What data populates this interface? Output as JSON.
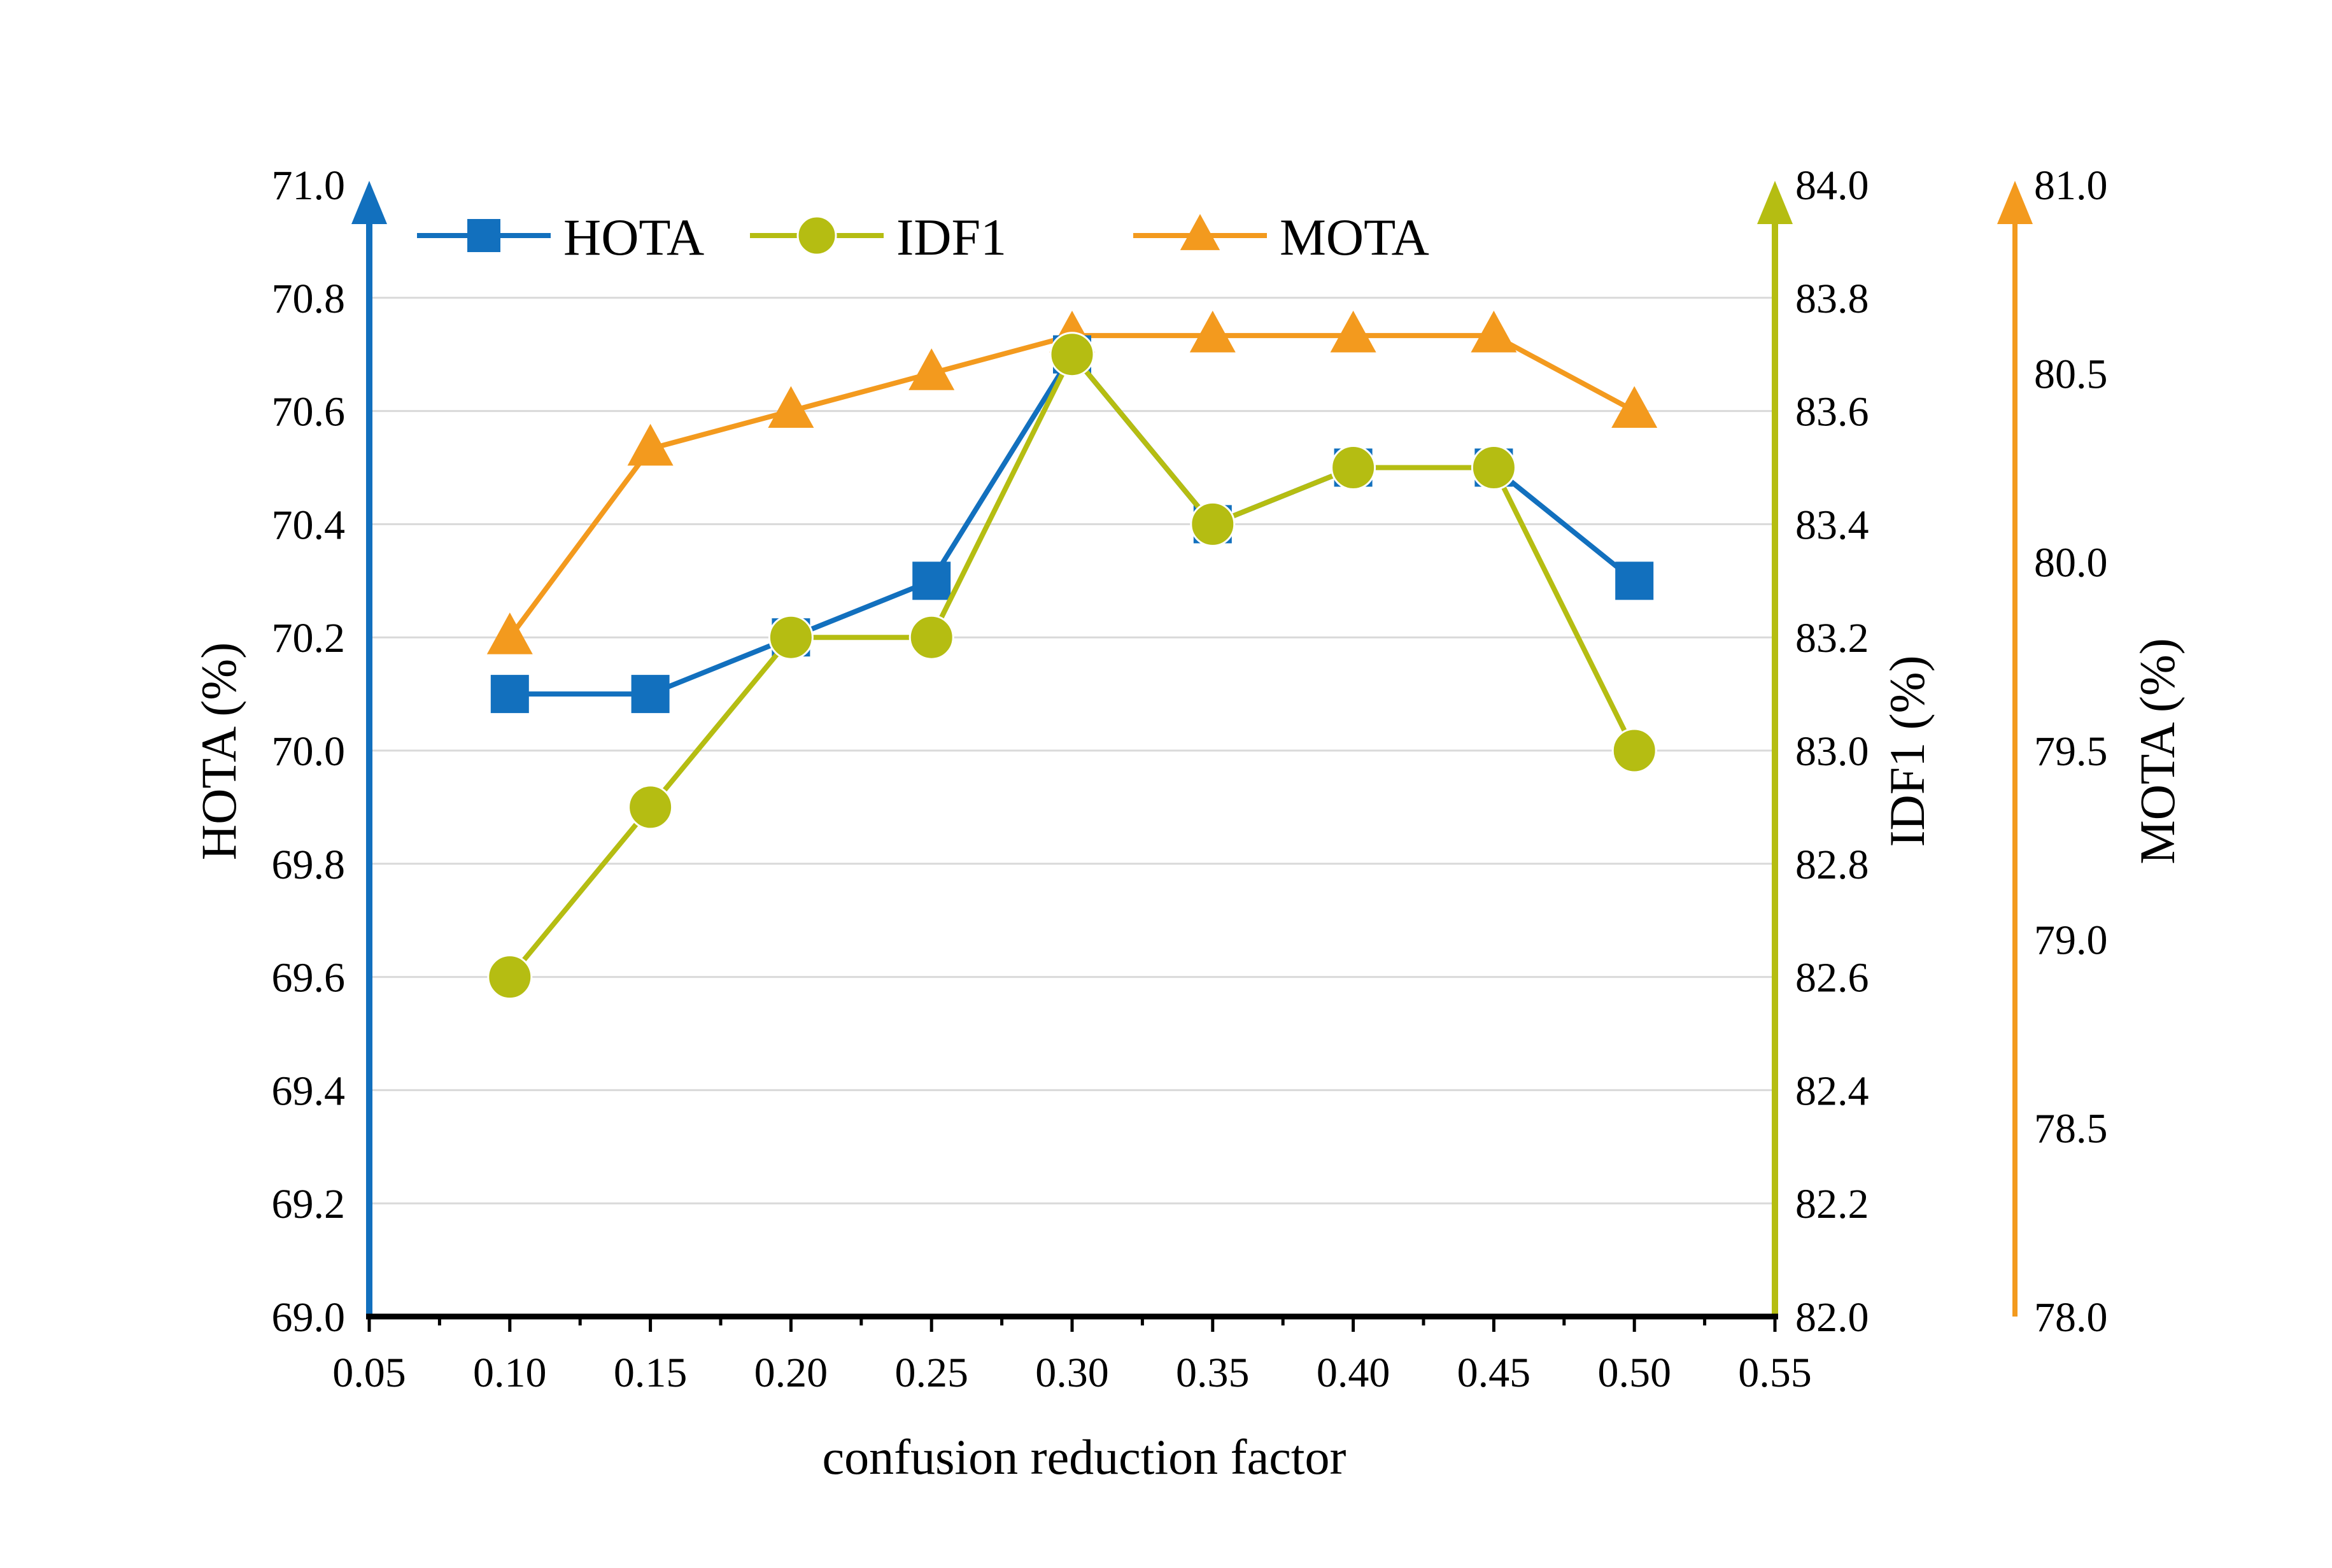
{
  "chart_data": {
    "type": "line",
    "title": "",
    "x": [
      0.1,
      0.15,
      0.2,
      0.25,
      0.3,
      0.35,
      0.4,
      0.45,
      0.5
    ],
    "x_ticks": [
      "0.05",
      "0.10",
      "0.15",
      "0.20",
      "0.25",
      "0.30",
      "0.35",
      "0.40",
      "0.45",
      "0.50",
      "0.55"
    ],
    "xlim": [
      0.05,
      0.55
    ],
    "xlabel": "confusion reduction factor",
    "axes": {
      "left": {
        "label": "HOTA (%)",
        "ylim": [
          69.0,
          71.0
        ],
        "ticks": [
          "69.0",
          "69.2",
          "69.4",
          "69.6",
          "69.8",
          "70.0",
          "70.2",
          "70.4",
          "70.6",
          "70.8",
          "71.0"
        ],
        "color": "#1270BE"
      },
      "right1": {
        "label": "IDF1 (%)",
        "ylim": [
          82.0,
          84.0
        ],
        "ticks": [
          "82.0",
          "82.2",
          "82.4",
          "82.6",
          "82.8",
          "83.0",
          "83.2",
          "83.4",
          "83.6",
          "83.8",
          "84.0"
        ],
        "color": "#B5BD12"
      },
      "right2": {
        "label": "MOTA (%)",
        "ylim": [
          78.0,
          81.0
        ],
        "ticks": [
          "78.0",
          "78.5",
          "79.0",
          "79.5",
          "80.0",
          "80.5",
          "81.0"
        ],
        "color": "#F39A1E"
      }
    },
    "series": [
      {
        "name": "HOTA",
        "axis": "left",
        "marker": "square",
        "color": "#1270BE",
        "values": [
          70.1,
          70.1,
          70.2,
          70.3,
          70.7,
          70.4,
          70.5,
          70.5,
          70.3
        ]
      },
      {
        "name": "IDF1",
        "axis": "right1",
        "marker": "circle",
        "color": "#B5BD12",
        "values": [
          82.6,
          82.9,
          83.2,
          83.2,
          83.7,
          83.4,
          83.5,
          83.5,
          83.0
        ]
      },
      {
        "name": "MOTA",
        "axis": "right2",
        "marker": "triangle",
        "color": "#F39A1E",
        "values": [
          79.8,
          80.3,
          80.4,
          80.5,
          80.6,
          80.6,
          80.6,
          80.6,
          80.4
        ]
      }
    ],
    "grid": true,
    "legend": "top-left"
  }
}
